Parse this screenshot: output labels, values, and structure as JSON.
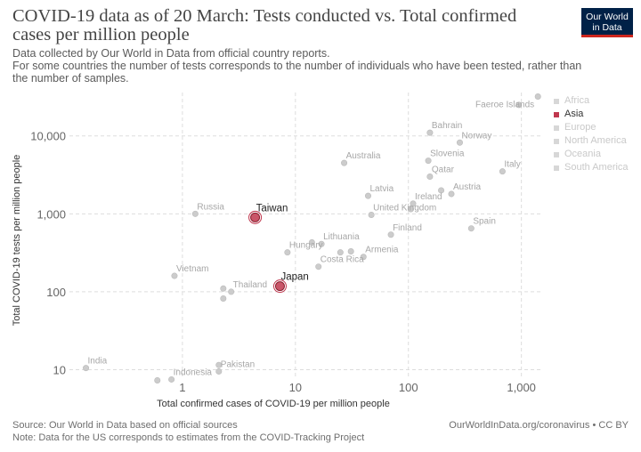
{
  "header": {
    "title": "COVID-19 data as of 20 March: Tests conducted vs. Total confirmed cases per million people",
    "subtitle_line1": "Data collected by Our World in Data from official country reports.",
    "subtitle_line2": "For some countries the number of tests corresponds to the number of individuals who have been tested, rather than the number of samples."
  },
  "logo": {
    "line1": "Our World",
    "line2": "in Data",
    "bg_color": "#002147",
    "accent_color": "#ce261e"
  },
  "legend": {
    "items": [
      {
        "label": "Africa",
        "color": "#d7d7d7",
        "active": false
      },
      {
        "label": "Asia",
        "color": "#c0374e",
        "active": true
      },
      {
        "label": "Europe",
        "color": "#d7d7d7",
        "active": false
      },
      {
        "label": "North America",
        "color": "#d7d7d7",
        "active": false
      },
      {
        "label": "Oceania",
        "color": "#d7d7d7",
        "active": false
      },
      {
        "label": "South America",
        "color": "#d7d7d7",
        "active": false
      }
    ]
  },
  "footer": {
    "source": "Source: Our World in Data based on official sources",
    "note": "Note: Data for the US corresponds to estimates from the COVID-Tracking Project",
    "url": "OurWorldInData.org/coronavirus • CC BY"
  },
  "chart_data": {
    "type": "scatter",
    "xlabel": "Total confirmed cases of COVID-19 per million people",
    "ylabel": "Total COVID-19 tests per million people",
    "x_scale": "log",
    "y_scale": "log",
    "xlim": [
      0.1,
      1500
    ],
    "ylim": [
      8,
      36000
    ],
    "x_ticks": [
      {
        "value": 1,
        "label": "1"
      },
      {
        "value": 10,
        "label": "10"
      },
      {
        "value": 100,
        "label": "100"
      },
      {
        "value": 1000,
        "label": "1,000"
      }
    ],
    "y_ticks": [
      {
        "value": 10,
        "label": "10"
      },
      {
        "value": 100,
        "label": "100"
      },
      {
        "value": 1000,
        "label": "1,000"
      },
      {
        "value": 10000,
        "label": "10,000"
      }
    ],
    "grid": true,
    "highlight_color": "#c0374e",
    "muted_color": "#cccccc",
    "points": [
      {
        "label": "Faeroe Islands",
        "x": 1400,
        "y": 32000,
        "highlight": false
      },
      {
        "label": "Bahrain",
        "x": 155,
        "y": 11000,
        "highlight": false
      },
      {
        "label": "Norway",
        "x": 285,
        "y": 8200,
        "highlight": false
      },
      {
        "label": "Slovenia",
        "x": 150,
        "y": 4800,
        "highlight": false
      },
      {
        "label": "Australia",
        "x": 27,
        "y": 4500,
        "highlight": false
      },
      {
        "label": "Qatar",
        "x": 155,
        "y": 3000,
        "highlight": false
      },
      {
        "label": "Italy",
        "x": 680,
        "y": 3500,
        "highlight": false
      },
      {
        "label": "Latvia",
        "x": 44,
        "y": 1700,
        "highlight": false
      },
      {
        "label": "Austria",
        "x": 240,
        "y": 1800,
        "highlight": false
      },
      {
        "label": "Ireland",
        "x": 110,
        "y": 1350,
        "highlight": false
      },
      {
        "label": "United Kingdom",
        "x": 47,
        "y": 970,
        "highlight": false
      },
      {
        "label": "Russia",
        "x": 1.3,
        "y": 1000,
        "highlight": false
      },
      {
        "label": "Taiwan",
        "x": 4.4,
        "y": 900,
        "highlight": true
      },
      {
        "label": "Spain",
        "x": 360,
        "y": 650,
        "highlight": false
      },
      {
        "label": "Finland",
        "x": 70,
        "y": 540,
        "highlight": false
      },
      {
        "label": "Lithuania",
        "x": 17,
        "y": 410,
        "highlight": false
      },
      {
        "label": "Hungary",
        "x": 8.5,
        "y": 320,
        "highlight": false
      },
      {
        "label": "Armenia",
        "x": 40,
        "y": 280,
        "highlight": false
      },
      {
        "label": "Costa Rica",
        "x": 16,
        "y": 210,
        "highlight": false
      },
      {
        "label": "Vietnam",
        "x": 0.85,
        "y": 160,
        "highlight": false
      },
      {
        "label": "Thailand",
        "x": 2.7,
        "y": 100,
        "highlight": false
      },
      {
        "label": "Japan",
        "x": 7.3,
        "y": 118,
        "highlight": true
      },
      {
        "label": "India",
        "x": 0.14,
        "y": 10.5,
        "highlight": false
      },
      {
        "label": "Pakistan",
        "x": 2.1,
        "y": 9.5,
        "highlight": false
      },
      {
        "label": "Indonesia",
        "x": 0.8,
        "y": 7.5,
        "highlight": false
      },
      {
        "label": "",
        "x": 0.6,
        "y": 7.3,
        "highlight": false
      },
      {
        "label": "",
        "x": 2.1,
        "y": 11.5,
        "highlight": false
      },
      {
        "label": "",
        "x": 2.3,
        "y": 110,
        "highlight": false
      },
      {
        "label": "",
        "x": 2.3,
        "y": 82,
        "highlight": false
      },
      {
        "label": "",
        "x": 14,
        "y": 430,
        "highlight": false
      },
      {
        "label": "",
        "x": 25,
        "y": 320,
        "highlight": false
      },
      {
        "label": "",
        "x": 31,
        "y": 330,
        "highlight": false
      },
      {
        "label": "",
        "x": 195,
        "y": 2000,
        "highlight": false
      },
      {
        "label": "",
        "x": 105,
        "y": 1150,
        "highlight": false
      },
      {
        "label": "",
        "x": 950,
        "y": 25000,
        "highlight": false
      }
    ]
  }
}
